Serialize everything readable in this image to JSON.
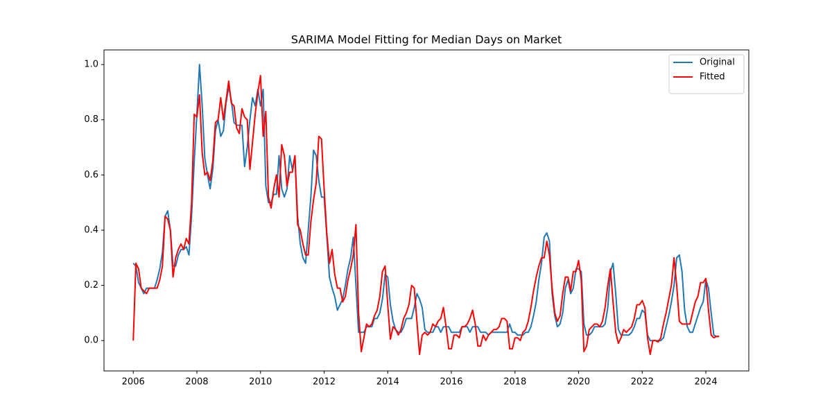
{
  "chart_data": {
    "type": "line",
    "title": "SARIMA Model Fitting for Median Days on Market",
    "x": [
      2006,
      2006.083,
      2006.167,
      2006.25,
      2006.333,
      2006.417,
      2006.5,
      2006.583,
      2006.667,
      2006.75,
      2006.833,
      2006.917,
      2007,
      2007.083,
      2007.167,
      2007.25,
      2007.333,
      2007.417,
      2007.5,
      2007.583,
      2007.667,
      2007.75,
      2007.833,
      2007.917,
      2008,
      2008.083,
      2008.167,
      2008.25,
      2008.333,
      2008.417,
      2008.5,
      2008.583,
      2008.667,
      2008.75,
      2008.833,
      2008.917,
      2009,
      2009.083,
      2009.167,
      2009.25,
      2009.333,
      2009.417,
      2009.5,
      2009.583,
      2009.667,
      2009.75,
      2009.833,
      2009.917,
      2010,
      2010.083,
      2010.167,
      2010.25,
      2010.333,
      2010.417,
      2010.5,
      2010.583,
      2010.667,
      2010.75,
      2010.833,
      2010.917,
      2011,
      2011.083,
      2011.167,
      2011.25,
      2011.333,
      2011.417,
      2011.5,
      2011.583,
      2011.667,
      2011.75,
      2011.833,
      2011.917,
      2012,
      2012.083,
      2012.167,
      2012.25,
      2012.333,
      2012.417,
      2012.5,
      2012.583,
      2012.667,
      2012.75,
      2012.833,
      2012.917,
      2013,
      2013.083,
      2013.167,
      2013.25,
      2013.333,
      2013.417,
      2013.5,
      2013.583,
      2013.667,
      2013.75,
      2013.833,
      2013.917,
      2014,
      2014.083,
      2014.167,
      2014.25,
      2014.333,
      2014.417,
      2014.5,
      2014.583,
      2014.667,
      2014.75,
      2014.833,
      2014.917,
      2015,
      2015.083,
      2015.167,
      2015.25,
      2015.333,
      2015.417,
      2015.5,
      2015.583,
      2015.667,
      2015.75,
      2015.833,
      2015.917,
      2016,
      2016.083,
      2016.167,
      2016.25,
      2016.333,
      2016.417,
      2016.5,
      2016.583,
      2016.667,
      2016.75,
      2016.833,
      2016.917,
      2017,
      2017.083,
      2017.167,
      2017.25,
      2017.333,
      2017.417,
      2017.5,
      2017.583,
      2017.667,
      2017.75,
      2017.833,
      2017.917,
      2018,
      2018.083,
      2018.167,
      2018.25,
      2018.333,
      2018.417,
      2018.5,
      2018.583,
      2018.667,
      2018.75,
      2018.833,
      2018.917,
      2019,
      2019.083,
      2019.167,
      2019.25,
      2019.333,
      2019.417,
      2019.5,
      2019.583,
      2019.667,
      2019.75,
      2019.833,
      2019.917,
      2020,
      2020.083,
      2020.167,
      2020.25,
      2020.333,
      2020.417,
      2020.5,
      2020.583,
      2020.667,
      2020.75,
      2020.833,
      2020.917,
      2021,
      2021.083,
      2021.167,
      2021.25,
      2021.333,
      2021.417,
      2021.5,
      2021.583,
      2021.667,
      2021.75,
      2021.833,
      2021.917,
      2022,
      2022.083,
      2022.167,
      2022.25,
      2022.333,
      2022.417,
      2022.5,
      2022.583,
      2022.667,
      2022.75,
      2022.833,
      2022.917,
      2023,
      2023.083,
      2023.167,
      2023.25,
      2023.333,
      2023.417,
      2023.5,
      2023.583,
      2023.667,
      2023.75,
      2023.833,
      2023.917,
      2024,
      2024.083,
      2024.167,
      2024.25,
      2024.333,
      2024.417
    ],
    "series": [
      {
        "name": "Original",
        "color": "#1f77b4",
        "values": [
          0.28,
          0.27,
          0.21,
          0.19,
          0.17,
          0.19,
          0.19,
          0.19,
          0.19,
          0.22,
          0.26,
          0.32,
          0.45,
          0.47,
          0.4,
          0.27,
          0.27,
          0.31,
          0.33,
          0.33,
          0.34,
          0.31,
          0.45,
          0.65,
          0.82,
          1.0,
          0.85,
          0.66,
          0.6,
          0.55,
          0.62,
          0.76,
          0.8,
          0.74,
          0.76,
          0.86,
          0.92,
          0.87,
          0.79,
          0.78,
          0.78,
          0.78,
          0.63,
          0.7,
          0.8,
          0.88,
          0.85,
          0.91,
          0.85,
          0.91,
          0.56,
          0.5,
          0.5,
          0.53,
          0.53,
          0.67,
          0.55,
          0.52,
          0.55,
          0.67,
          0.62,
          0.67,
          0.45,
          0.35,
          0.3,
          0.28,
          0.4,
          0.52,
          0.69,
          0.67,
          0.58,
          0.52,
          0.52,
          0.38,
          0.23,
          0.19,
          0.16,
          0.11,
          0.13,
          0.15,
          0.2,
          0.26,
          0.3,
          0.375,
          0.2,
          0.03,
          0.03,
          0.03,
          0.05,
          0.05,
          0.05,
          0.08,
          0.08,
          0.1,
          0.15,
          0.24,
          0.23,
          0.13,
          0.07,
          0.04,
          0.03,
          0.03,
          0.05,
          0.08,
          0.08,
          0.08,
          0.12,
          0.17,
          0.15,
          0.12,
          0.04,
          0.03,
          0.03,
          0.03,
          0.05,
          0.05,
          0.03,
          0.05,
          0.05,
          0.05,
          0.03,
          0.03,
          0.03,
          0.03,
          0.05,
          0.05,
          0.05,
          0.03,
          0.05,
          0.05,
          0.05,
          0.03,
          0.03,
          0.03,
          0.02,
          0.03,
          0.03,
          0.03,
          0.03,
          0.03,
          0.03,
          0.03,
          0.06,
          0.03,
          0.03,
          0.02,
          0.02,
          0.02,
          0.03,
          0.03,
          0.05,
          0.09,
          0.14,
          0.22,
          0.28,
          0.375,
          0.39,
          0.36,
          0.17,
          0.09,
          0.05,
          0.06,
          0.1,
          0.19,
          0.22,
          0.17,
          0.19,
          0.26,
          0.26,
          0.25,
          0.06,
          0.02,
          0.02,
          0.03,
          0.05,
          0.05,
          0.05,
          0.05,
          0.06,
          0.12,
          0.25,
          0.28,
          0.17,
          0.04,
          0.02,
          0.02,
          0.02,
          0.02,
          0.03,
          0.05,
          0.08,
          0.08,
          0.11,
          0.1,
          0.02,
          0.0,
          0.0,
          0.0,
          0.0,
          0.0,
          0.01,
          0.05,
          0.09,
          0.14,
          0.2,
          0.3,
          0.31,
          0.25,
          0.11,
          0.05,
          0.03,
          0.03,
          0.06,
          0.09,
          0.12,
          0.14,
          0.22,
          0.19,
          0.1,
          0.02,
          0.015,
          0.015
        ]
      },
      {
        "name": "Fitted",
        "color": "#ff0000",
        "values": [
          0.0,
          0.28,
          0.26,
          0.19,
          0.18,
          0.17,
          0.19,
          0.19,
          0.19,
          0.19,
          0.22,
          0.27,
          0.45,
          0.44,
          0.4,
          0.23,
          0.3,
          0.33,
          0.35,
          0.33,
          0.37,
          0.35,
          0.5,
          0.82,
          0.81,
          0.89,
          0.68,
          0.6,
          0.61,
          0.58,
          0.65,
          0.79,
          0.8,
          0.88,
          0.8,
          0.87,
          0.94,
          0.86,
          0.85,
          0.77,
          0.75,
          0.84,
          0.81,
          0.8,
          0.62,
          0.72,
          0.82,
          0.9,
          0.96,
          0.74,
          0.83,
          0.52,
          0.48,
          0.55,
          0.6,
          0.52,
          0.71,
          0.67,
          0.56,
          0.61,
          0.61,
          0.67,
          0.42,
          0.4,
          0.35,
          0.31,
          0.31,
          0.43,
          0.51,
          0.57,
          0.74,
          0.73,
          0.55,
          0.39,
          0.28,
          0.33,
          0.24,
          0.19,
          0.19,
          0.14,
          0.16,
          0.22,
          0.26,
          0.31,
          0.42,
          0.1,
          -0.04,
          0.01,
          0.06,
          0.05,
          0.06,
          0.09,
          0.11,
          0.16,
          0.25,
          0.27,
          0.13,
          0.005,
          0.05,
          0.04,
          0.02,
          0.04,
          0.08,
          0.1,
          0.13,
          0.2,
          0.19,
          0.07,
          -0.05,
          0.02,
          0.03,
          0.02,
          0.03,
          0.06,
          0.05,
          0.07,
          0.08,
          0.12,
          0.05,
          -0.03,
          -0.03,
          0.02,
          0.02,
          0.01,
          0.05,
          0.05,
          0.06,
          0.08,
          0.11,
          0.06,
          -0.02,
          -0.02,
          0.02,
          0.0,
          0.02,
          0.03,
          0.04,
          0.04,
          0.05,
          0.08,
          0.08,
          0.07,
          -0.03,
          -0.03,
          0.01,
          0.01,
          0.0,
          0.03,
          0.04,
          0.07,
          0.12,
          0.18,
          0.23,
          0.27,
          0.3,
          0.3,
          0.36,
          0.31,
          0.19,
          0.1,
          0.07,
          0.09,
          0.17,
          0.23,
          0.23,
          0.18,
          0.25,
          0.25,
          0.29,
          0.22,
          -0.04,
          -0.02,
          0.04,
          0.05,
          0.06,
          0.06,
          0.05,
          0.07,
          0.12,
          0.2,
          0.26,
          0.14,
          0.03,
          -0.01,
          0.01,
          0.04,
          0.03,
          0.04,
          0.05,
          0.08,
          0.13,
          0.13,
          0.145,
          0.12,
          0.01,
          -0.05,
          0.0,
          0.0,
          -0.005,
          0.01,
          0.06,
          0.1,
          0.15,
          0.2,
          0.3,
          0.2,
          0.07,
          0.06,
          0.06,
          0.06,
          0.06,
          0.1,
          0.14,
          0.16,
          0.21,
          0.21,
          0.225,
          0.11,
          0.02,
          0.01,
          0.015,
          0.015
        ]
      }
    ],
    "xlim": [
      2005.08,
      2025.35
    ],
    "xticks": [
      2006,
      2008,
      2010,
      2012,
      2014,
      2016,
      2018,
      2020,
      2022,
      2024
    ],
    "ylim": [
      -0.11,
      1.053
    ],
    "yticks": [
      {
        "value": 0,
        "label": "0.0"
      },
      0.2,
      0.4,
      0.6,
      0.8,
      {
        "value": 1,
        "label": "1.0"
      }
    ],
    "grid": false,
    "legend": "upper right"
  }
}
